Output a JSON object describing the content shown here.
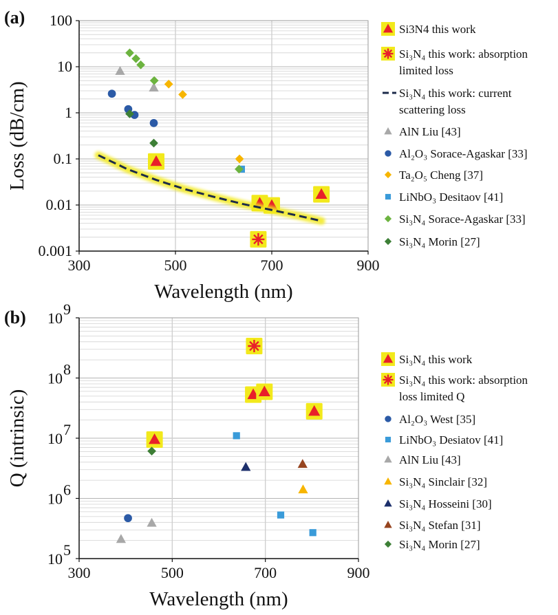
{
  "colors": {
    "highlight": "#f2e91c",
    "red": "#e8202a",
    "grey": "#a8a8a8",
    "blue": "#2b5aa6",
    "orange": "#f7b500",
    "lightblue": "#3a9bd9",
    "green": "#6cb33f",
    "darkgreen": "#3d7f36",
    "navy": "#1c2f6b",
    "brown": "#96441f",
    "fitline": "#1c2a4a"
  },
  "chart_data": [
    {
      "panel_label": "(a)",
      "type": "scatter",
      "xlabel": "Wavelength (nm)",
      "ylabel": "Loss (dB/cm)",
      "xlim": [
        300,
        900
      ],
      "ylim": [
        0.001,
        100
      ],
      "y_scale": "log",
      "x_ticks": [
        "300",
        "500",
        "700",
        "900"
      ],
      "y_ticks": [
        "0.001",
        "0.01",
        "0.1",
        "1",
        "10",
        "100"
      ],
      "grid": true,
      "legend_position": "right",
      "series": [
        {
          "name": "Si3N4 this work",
          "label_html": [
            "Si",
            "3",
            "N",
            "4",
            "  this work"
          ],
          "marker": "triangle",
          "color": "red",
          "highlight": true,
          "points": [
            [
              460,
              0.088
            ],
            [
              675,
              0.011
            ],
            [
              700,
              0.0098
            ],
            [
              803,
              0.017
            ]
          ]
        },
        {
          "name": "Si3N4 this work: absorption limited loss",
          "label_lines": [
            "Si₃N₄ this work: absorption",
            "limited loss"
          ],
          "marker": "asterisk",
          "color": "red",
          "highlight": true,
          "points": [
            [
              672,
              0.0018
            ]
          ]
        },
        {
          "name": "Si3N4 this work: current scattering loss",
          "label_lines": [
            "Si₃N₄ this work: current",
            "scattering loss"
          ],
          "marker": "line",
          "color": "fitline",
          "highlight": true,
          "points": [
            [
              340,
              0.12
            ],
            [
              400,
              0.06
            ],
            [
              460,
              0.035
            ],
            [
              520,
              0.022
            ],
            [
              580,
              0.015
            ],
            [
              640,
              0.0105
            ],
            [
              700,
              0.0078
            ],
            [
              760,
              0.0057
            ],
            [
              803,
              0.0045
            ]
          ]
        },
        {
          "name": "AlN Liu [43]",
          "label_lines": [
            "AlN  Liu [43]"
          ],
          "marker": "triangle",
          "color": "grey",
          "points": [
            [
              385,
              8
            ],
            [
              455,
              3.5
            ]
          ]
        },
        {
          "name": "Al2O3 Sorace-Agaskar [33]",
          "label_lines": [
            "Al₂O₃ Sorace-Agaskar [33]"
          ],
          "marker": "circle",
          "color": "blue",
          "points": [
            [
              368,
              2.6
            ],
            [
              402,
              1.2
            ],
            [
              415,
              0.9
            ],
            [
              455,
              0.6
            ]
          ]
        },
        {
          "name": "Ta2O5 Cheng [37]",
          "label_lines": [
            "Ta₂O₅ Cheng [37]"
          ],
          "marker": "diamond",
          "color": "orange",
          "points": [
            [
              486,
              4.2
            ],
            [
              515,
              2.5
            ],
            [
              633,
              0.1
            ]
          ]
        },
        {
          "name": "LiNbO3 Desitaov [41]",
          "label_lines": [
            "LiNbO₃  Desitaov [41]"
          ],
          "marker": "square",
          "color": "lightblue",
          "points": [
            [
              637,
              0.06
            ]
          ]
        },
        {
          "name": "Si3N4 Sorace-Agaskar [33]",
          "label_lines": [
            "Si₃N₄  Sorace-Agaskar [33]"
          ],
          "marker": "diamond",
          "color": "green",
          "points": [
            [
              405,
              20
            ],
            [
              418,
              15
            ],
            [
              428,
              11
            ],
            [
              456,
              5
            ],
            [
              632,
              0.06
            ]
          ]
        },
        {
          "name": "Si3N4 Morin [27]",
          "label_lines": [
            "Si₃N₄  Morin [27]"
          ],
          "marker": "diamond",
          "color": "darkgreen",
          "points": [
            [
              405,
              0.95
            ],
            [
              455,
              0.22
            ]
          ]
        }
      ]
    },
    {
      "panel_label": "(b)",
      "type": "scatter",
      "xlabel": "Wavelength (nm)",
      "ylabel": "Q (intrinsic)",
      "xlim": [
        300,
        900
      ],
      "ylim": [
        100000,
        1000000000
      ],
      "y_scale": "log",
      "x_ticks": [
        "300",
        "500",
        "700",
        "900"
      ],
      "y_tick_exponents": [
        "5",
        "6",
        "7",
        "8",
        "9"
      ],
      "y_tick_base": "10",
      "grid": true,
      "legend_position": "right",
      "series": [
        {
          "name": "Si3N4 this work",
          "label_lines": [
            "Si₃N₄  this work"
          ],
          "marker": "triangle",
          "color": "red",
          "highlight": true,
          "points": [
            [
              462,
              9500000
            ],
            [
              674,
              53000000
            ],
            [
              698,
              59000000
            ],
            [
              805,
              28000000
            ]
          ]
        },
        {
          "name": "Si3N4 this work: absorption loss limited Q",
          "label_lines": [
            "Si₃N₄ this work: absorption",
            "loss limited Q"
          ],
          "marker": "asterisk",
          "color": "red",
          "highlight": true,
          "points": [
            [
              676,
              340000000
            ]
          ]
        },
        {
          "name": "Al2O3 West [35]",
          "label_lines": [
            "Al₂O₃  West [35]"
          ],
          "marker": "circle",
          "color": "blue",
          "points": [
            [
              405,
              470000
            ]
          ]
        },
        {
          "name": "LiNbO3 Desiatov [41]",
          "label_lines": [
            "LiNbO₃  Desiatov [41]"
          ],
          "marker": "square",
          "color": "lightblue",
          "points": [
            [
              638,
              11000000
            ],
            [
              733,
              530000
            ],
            [
              802,
              270000
            ]
          ]
        },
        {
          "name": "AlN Liu [43]",
          "label_lines": [
            "AlN Liu  [43]"
          ],
          "marker": "triangle",
          "color": "grey",
          "points": [
            [
              390,
              210000
            ],
            [
              456,
              390000
            ]
          ]
        },
        {
          "name": "Si3N4 Sinclair [32]",
          "label_lines": [
            "Si₃N₄  Sinclair [32]"
          ],
          "marker": "triangle",
          "color": "orange",
          "points": [
            [
              781,
              1400000
            ]
          ]
        },
        {
          "name": "Si3N4 Hosseini [30]",
          "label_lines": [
            "Si₃N₄  Hosseini [30]"
          ],
          "marker": "triangle",
          "color": "navy",
          "points": [
            [
              658,
              3300000
            ]
          ]
        },
        {
          "name": "Si3N4 Stefan [31]",
          "label_lines": [
            "Si₃N₄  Stefan [31]"
          ],
          "marker": "triangle",
          "color": "brown",
          "points": [
            [
              780,
              3700000
            ]
          ]
        },
        {
          "name": "Si3N4 Morin [27]",
          "label_lines": [
            "Si₃N₄  Morin [27]"
          ],
          "marker": "diamond",
          "color": "darkgreen",
          "points": [
            [
              456,
              6100000
            ]
          ]
        }
      ]
    }
  ]
}
